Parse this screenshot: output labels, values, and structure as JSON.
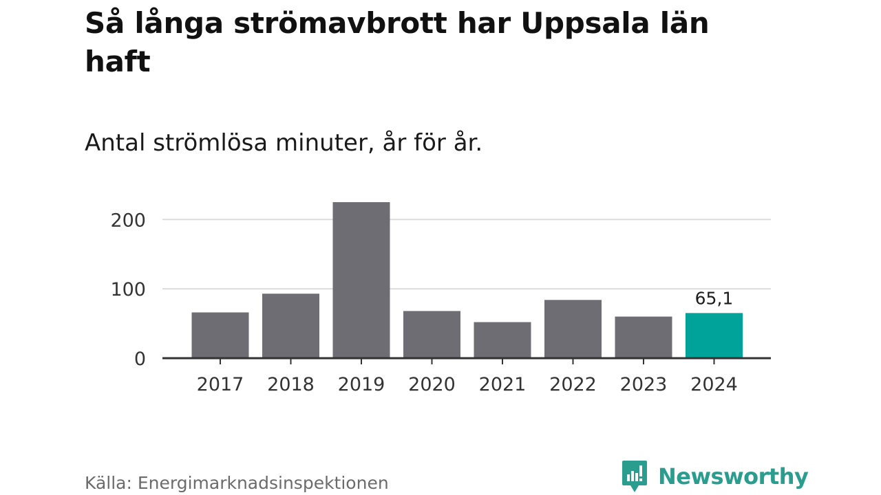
{
  "title": "Så långa strömavbrott har Uppsala län haft",
  "subtitle": "Antal strömlösa minuter, år för år.",
  "source": "Källa: Energimarknadsinspektionen",
  "brand": {
    "name": "Newsworthy",
    "icon": "newsworthy-logo-icon",
    "color": "#2a9d8f"
  },
  "colors": {
    "bar": "#6e6d73",
    "highlight": "#00a39a",
    "grid": "#dcdcdc",
    "axis": "#333333"
  },
  "chart_data": {
    "type": "bar",
    "title": "Så långa strömavbrott har Uppsala län haft",
    "subtitle": "Antal strömlösa minuter, år för år.",
    "xlabel": "",
    "ylabel": "",
    "categories": [
      "2017",
      "2018",
      "2019",
      "2020",
      "2021",
      "2022",
      "2023",
      "2024"
    ],
    "values": [
      66,
      93,
      225,
      68,
      52,
      84,
      60,
      65.1
    ],
    "highlight_index": 7,
    "data_labels": [
      {
        "index": 7,
        "text": "65,1"
      }
    ],
    "ylim": [
      0,
      230
    ],
    "yticks": [
      0,
      100,
      200
    ],
    "ytick_labels": [
      "0",
      "100",
      "200"
    ],
    "grid": true
  }
}
